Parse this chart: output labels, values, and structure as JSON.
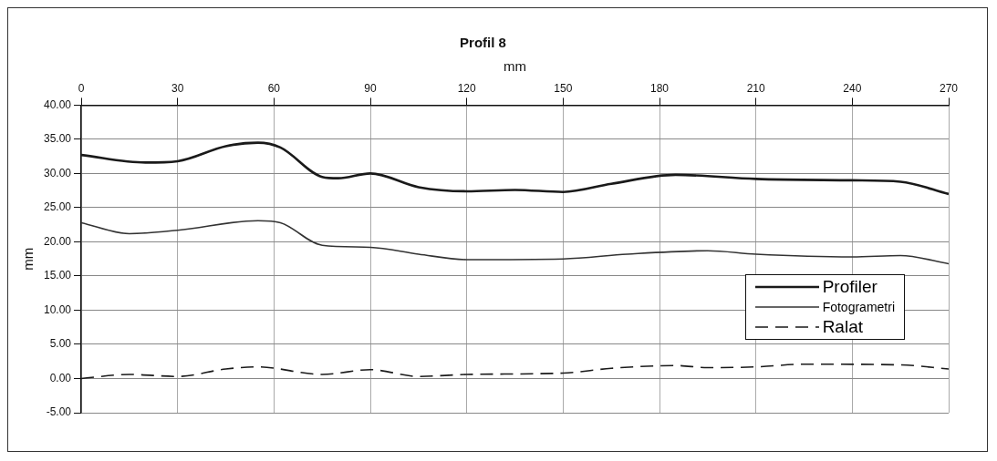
{
  "chart_data": {
    "type": "line",
    "title": "Profil 8",
    "xlabel": "mm",
    "ylabel": "mm",
    "xlim": [
      0,
      270
    ],
    "xticks": [
      0,
      30,
      60,
      90,
      120,
      150,
      180,
      210,
      240,
      270
    ],
    "ylim": [
      -5,
      40
    ],
    "yticks": [
      {
        "value": 40,
        "label": "40.00"
      },
      {
        "value": 35,
        "label": "35.00"
      },
      {
        "value": 30,
        "label": "30.00"
      },
      {
        "value": 25,
        "label": "25.00"
      },
      {
        "value": 20,
        "label": "20.00"
      },
      {
        "value": 15,
        "label": "15.00"
      },
      {
        "value": 10,
        "label": "10.00"
      },
      {
        "value": 5,
        "label": "5.00"
      },
      {
        "value": 0,
        "label": "0.00"
      },
      {
        "value": -5,
        "label": "-5.00"
      }
    ],
    "grid": true,
    "legend": "right",
    "marker": "none",
    "series": [
      {
        "name": "Profiler",
        "color": "#1a1a1a",
        "line_style": "solid",
        "x": [
          0,
          20,
          30,
          45,
          55,
          62,
          75,
          80,
          90,
          105,
          120,
          135,
          150,
          165,
          185,
          210,
          240,
          255,
          270
        ],
        "values": [
          32.7,
          31.6,
          31.8,
          34,
          34.5,
          33.8,
          29.5,
          29.3,
          30,
          28,
          27.4,
          27.6,
          27.3,
          28.5,
          29.8,
          29.2,
          29,
          28.8,
          27
        ]
      },
      {
        "name": "Fotogrametri",
        "color": "#333333",
        "line_style": "solid",
        "x": [
          0,
          15,
          30,
          55,
          62,
          75,
          90,
          105,
          120,
          150,
          170,
          195,
          210,
          240,
          255,
          270
        ],
        "values": [
          22.8,
          21.2,
          21.7,
          23.1,
          22.8,
          19.5,
          19.2,
          18.2,
          17.4,
          17.5,
          18.2,
          18.7,
          18.2,
          17.8,
          18,
          16.8
        ]
      },
      {
        "name": "Ralat",
        "color": "#1a1a1a",
        "line_style": "dashed",
        "x": [
          0,
          15,
          30,
          45,
          55,
          75,
          90,
          105,
          120,
          150,
          165,
          185,
          195,
          210,
          225,
          255,
          270
        ],
        "values": [
          0,
          0.6,
          0.3,
          1.4,
          1.7,
          0.6,
          1.3,
          0.3,
          0.6,
          0.8,
          1.5,
          1.9,
          1.6,
          1.7,
          2.1,
          2,
          1.4
        ]
      }
    ]
  }
}
